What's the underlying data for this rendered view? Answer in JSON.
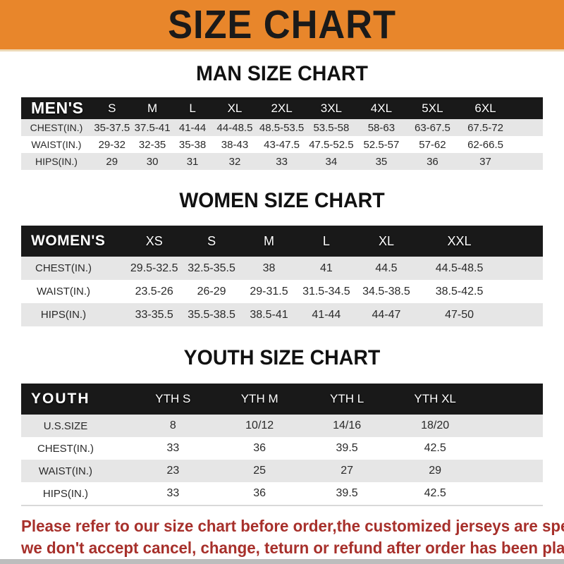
{
  "banner": {
    "title": "SIZE CHART",
    "bg_color": "#E8862B",
    "text_color": "#1a1a1a"
  },
  "sections": [
    {
      "title": "MAN SIZE CHART",
      "header_label": "MEN'S",
      "columns": [
        "S",
        "M",
        "L",
        "XL",
        "2XL",
        "3XL",
        "4XL",
        "5XL",
        "6XL"
      ],
      "rows": [
        {
          "label": "CHEST(IN.)",
          "values": [
            "35-37.5",
            "37.5-41",
            "41-44",
            "44-48.5",
            "48.5-53.5",
            "53.5-58",
            "58-63",
            "63-67.5",
            "67.5-72"
          ]
        },
        {
          "label": "WAIST(IN.)",
          "values": [
            "29-32",
            "32-35",
            "35-38",
            "38-43",
            "43-47.5",
            "47.5-52.5",
            "52.5-57",
            "57-62",
            "62-66.5"
          ]
        },
        {
          "label": "HIPS(IN.)",
          "values": [
            "29",
            "30",
            "31",
            "32",
            "33",
            "34",
            "35",
            "36",
            "37"
          ]
        }
      ]
    },
    {
      "title": "WOMEN SIZE CHART",
      "header_label": "WOMEN'S",
      "columns": [
        "XS",
        "S",
        "M",
        "L",
        "XL",
        "XXL"
      ],
      "rows": [
        {
          "label": "CHEST(IN.)",
          "values": [
            "29.5-32.5",
            "32.5-35.5",
            "38",
            "41",
            "44.5",
            "44.5-48.5"
          ]
        },
        {
          "label": "WAIST(IN.)",
          "values": [
            "23.5-26",
            "26-29",
            "29-31.5",
            "31.5-34.5",
            "34.5-38.5",
            "38.5-42.5"
          ]
        },
        {
          "label": "HIPS(IN.)",
          "values": [
            "33-35.5",
            "35.5-38.5",
            "38.5-41",
            "41-44",
            "44-47",
            "47-50"
          ]
        }
      ]
    },
    {
      "title": "YOUTH SIZE CHART",
      "header_label": "YOUTH",
      "columns": [
        "YTH S",
        "YTH M",
        "YTH L",
        "YTH XL"
      ],
      "rows": [
        {
          "label": "U.S.SIZE",
          "values": [
            "8",
            "10/12",
            "14/16",
            "18/20"
          ]
        },
        {
          "label": "CHEST(IN.)",
          "values": [
            "33",
            "36",
            "39.5",
            "42.5"
          ]
        },
        {
          "label": "WAIST(IN.)",
          "values": [
            "23",
            "25",
            "27",
            "29"
          ]
        },
        {
          "label": "HIPS(IN.)",
          "values": [
            "33",
            "36",
            "39.5",
            "42.5"
          ]
        }
      ]
    }
  ],
  "note": {
    "line1": "Please refer to our size chart before order,the customized jerseys are special products,",
    "line2": "we don't accept cancel, change, teturn or refund after order has been placed!",
    "color": "#A7302B"
  },
  "header_bar_color": "#191919",
  "stripe_row_color": "#E6E6E6"
}
